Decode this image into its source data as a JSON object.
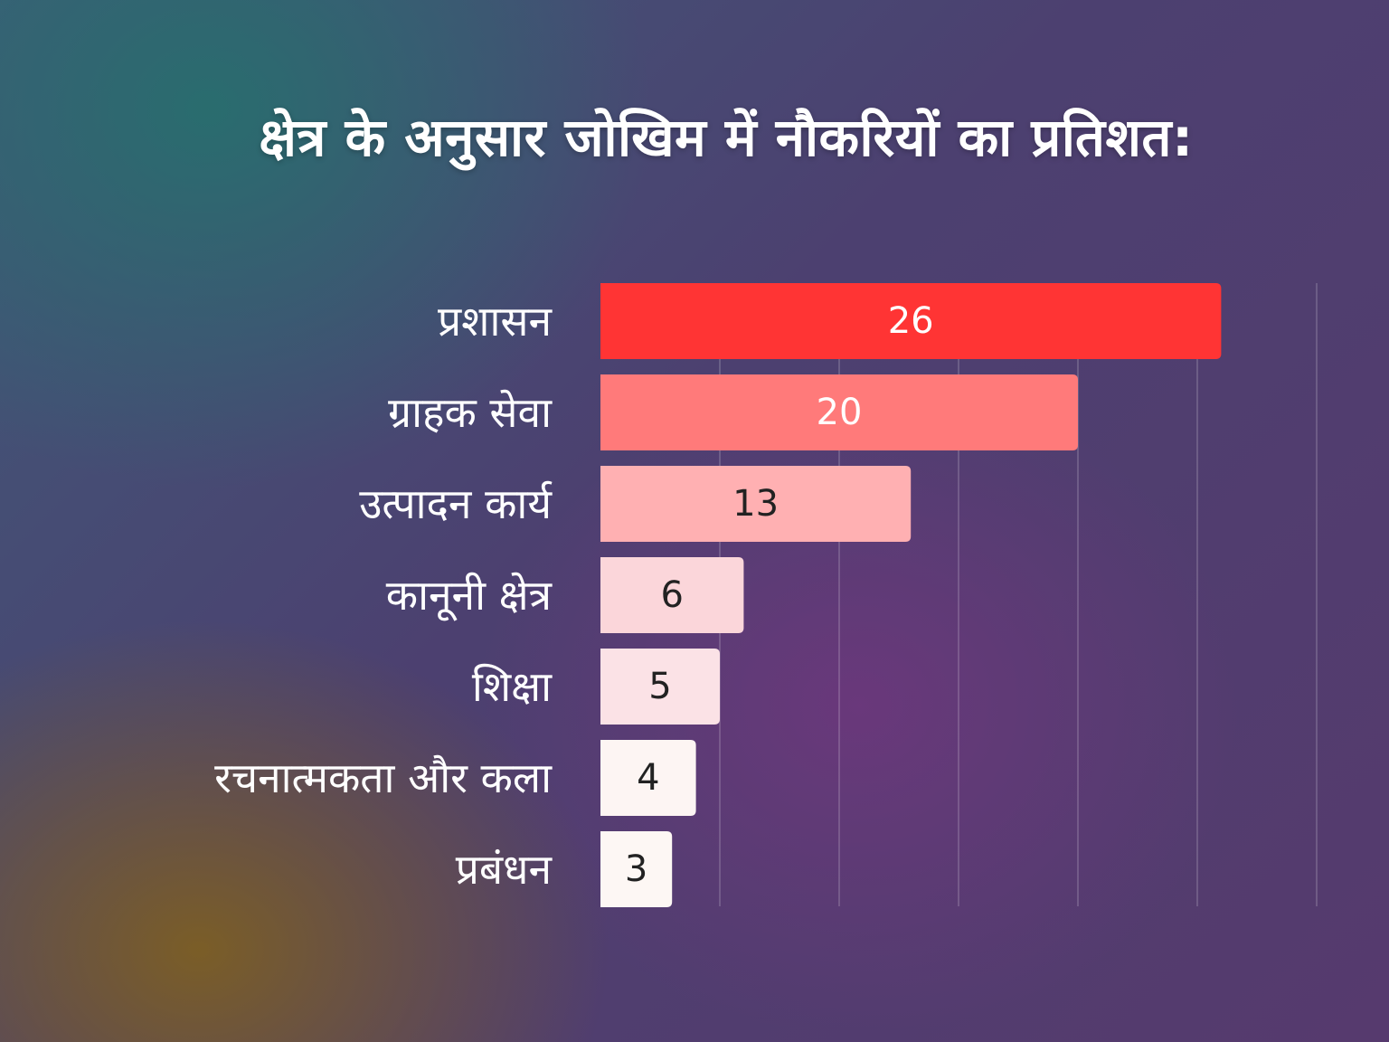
{
  "chart_data": {
    "type": "bar",
    "orientation": "horizontal",
    "title": "क्षेत्र के अनुसार जोखिम में नौकरियों का प्रतिशत:",
    "categories": [
      "प्रशासन",
      "ग्राहक सेवा",
      "उत्पादन कार्य",
      "कानूनी क्षेत्र",
      "शिक्षा",
      "रचनात्मकता और कला",
      "प्रबंधन"
    ],
    "values": [
      26,
      20,
      13,
      6,
      5,
      4,
      3
    ],
    "value_labels": [
      "26",
      "20",
      "13",
      "6",
      "5",
      "4",
      "3"
    ],
    "bar_colors": [
      "#ff3434",
      "#ff7a7a",
      "#ffb0b2",
      "#fbd6da",
      "#fbe2e6",
      "#fdf5f3",
      "#fdf7f4"
    ],
    "label_colors": [
      "#ffffff",
      "#ffffff",
      "#222222",
      "#222222",
      "#222222",
      "#222222",
      "#222222"
    ],
    "xlim": [
      0,
      30
    ],
    "grid": true,
    "xlabel": "",
    "ylabel": ""
  }
}
